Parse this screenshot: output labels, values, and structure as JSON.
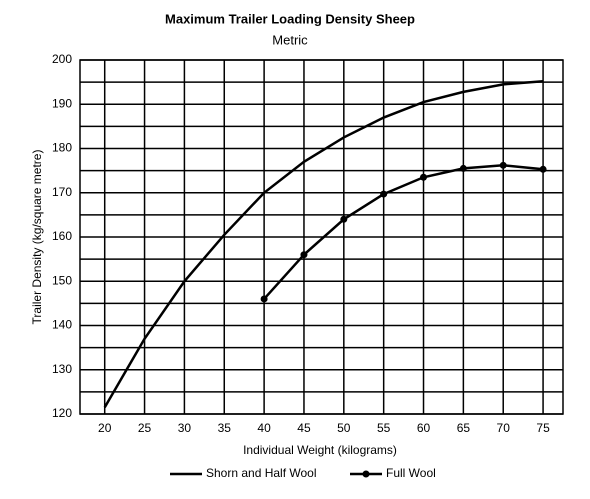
{
  "chart_data": {
    "type": "line",
    "title": "Maximum Trailer Loading Density Sheep",
    "subtitle": "Metric",
    "x_label": "Individual Weight (kilograms)",
    "y_label": "Trailer Density (kg/square metre)",
    "x": [
      20,
      25,
      30,
      35,
      40,
      45,
      50,
      55,
      60,
      65,
      70,
      75
    ],
    "series": [
      {
        "name": "Shorn and Half Wool",
        "color": "#000000",
        "markers": false,
        "values": [
          121.5,
          137,
          150,
          160.5,
          170,
          177,
          182.5,
          187,
          190.5,
          192.8,
          194.5,
          195.2
        ]
      },
      {
        "name": "Full Wool",
        "color": "#000000",
        "markers": true,
        "values": [
          null,
          null,
          null,
          null,
          146,
          156,
          164,
          169.7,
          173.5,
          175.5,
          176.2,
          175.3
        ]
      }
    ],
    "xlim": [
      16.9,
      77.5
    ],
    "ylim": [
      120,
      200
    ],
    "xticks": [
      20,
      25,
      30,
      35,
      40,
      45,
      50,
      55,
      60,
      65,
      70,
      75
    ],
    "yticks": [
      120,
      130,
      140,
      150,
      160,
      170,
      180,
      190,
      200
    ],
    "minor_yticks": [
      125,
      135,
      145,
      155,
      165,
      175,
      185,
      195
    ],
    "grid": true,
    "legend": "bottom"
  }
}
